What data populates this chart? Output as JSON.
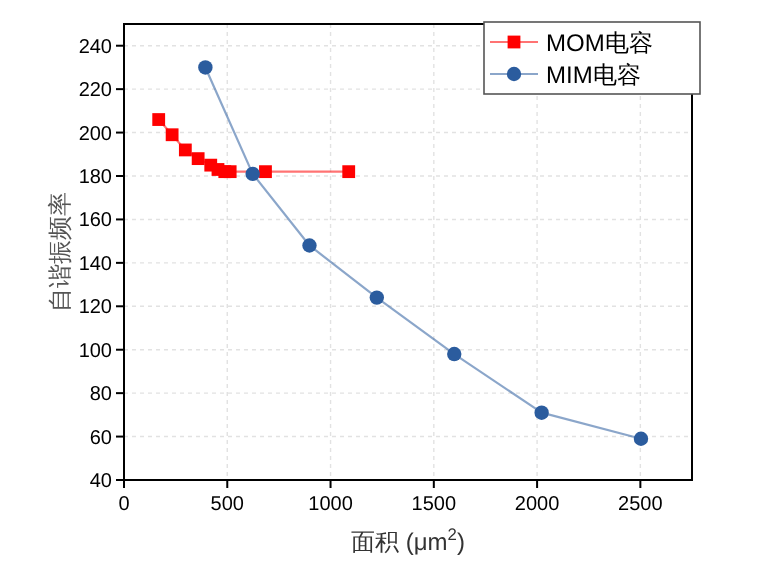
{
  "chart_data": {
    "type": "line",
    "xlabel": "面积 (μm$^{2}$)",
    "ylabel": "自谐振频率",
    "xlim": [
      0,
      2750
    ],
    "ylim": [
      40,
      250
    ],
    "xticks": [
      0,
      500,
      1000,
      1500,
      2000,
      2500
    ],
    "yticks": [
      40,
      60,
      80,
      100,
      120,
      140,
      160,
      180,
      200,
      220,
      240
    ],
    "grid": true,
    "legend": "top right",
    "line_style": "solid",
    "series": [
      {
        "name": "MOM电容",
        "color": "#ff0000",
        "marker": "square",
        "x": [
          168,
          233,
          297,
          359,
          420,
          455,
          488,
          514,
          685,
          1088
        ],
        "values": [
          206,
          199,
          192,
          188,
          185,
          183,
          182,
          182,
          182,
          182
        ]
      },
      {
        "name": "MIM电容",
        "color": "#2b5c9e",
        "marker": "circle",
        "x": [
          394,
          623,
          898,
          1224,
          1599,
          2022,
          2503
        ],
        "values": [
          230,
          181,
          148,
          124,
          98,
          71,
          59
        ]
      }
    ]
  }
}
